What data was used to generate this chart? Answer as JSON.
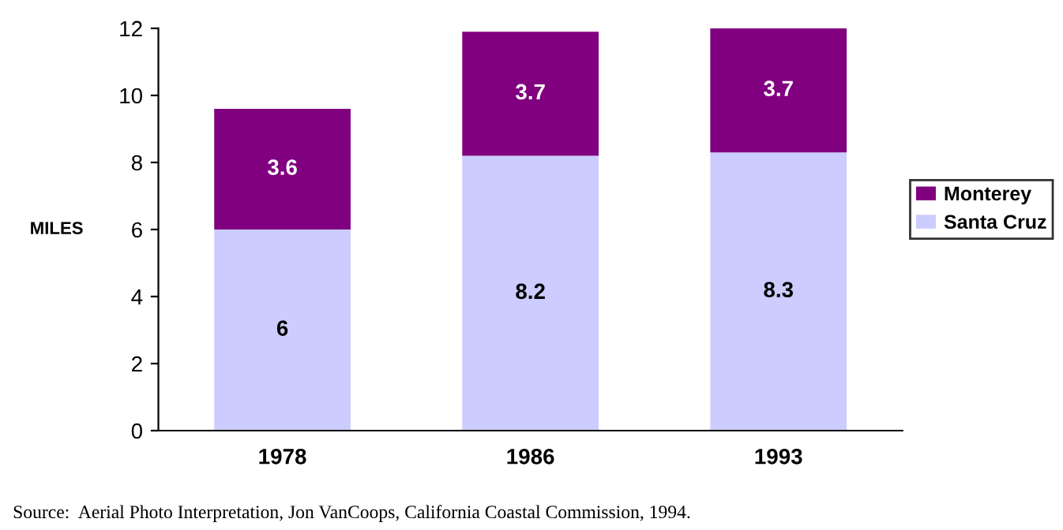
{
  "chart_data": {
    "type": "bar",
    "stacked": true,
    "categories": [
      "1978",
      "1986",
      "1993"
    ],
    "series": [
      {
        "name": "Santa Cruz",
        "color": "#ccccff",
        "values": [
          6,
          8.2,
          8.3
        ]
      },
      {
        "name": "Monterey",
        "color": "#800080",
        "values": [
          3.6,
          3.7,
          3.7
        ]
      }
    ],
    "ylabel": "MILES",
    "ylim": [
      0,
      12
    ],
    "yticks": [
      0,
      2,
      4,
      6,
      8,
      10,
      12
    ],
    "grid": false,
    "legend": "right",
    "data_labels": true,
    "annotations": [
      "Source:  Aerial Photo Interpretation, Jon VanCoops, California Coastal Commission, 1994."
    ]
  }
}
